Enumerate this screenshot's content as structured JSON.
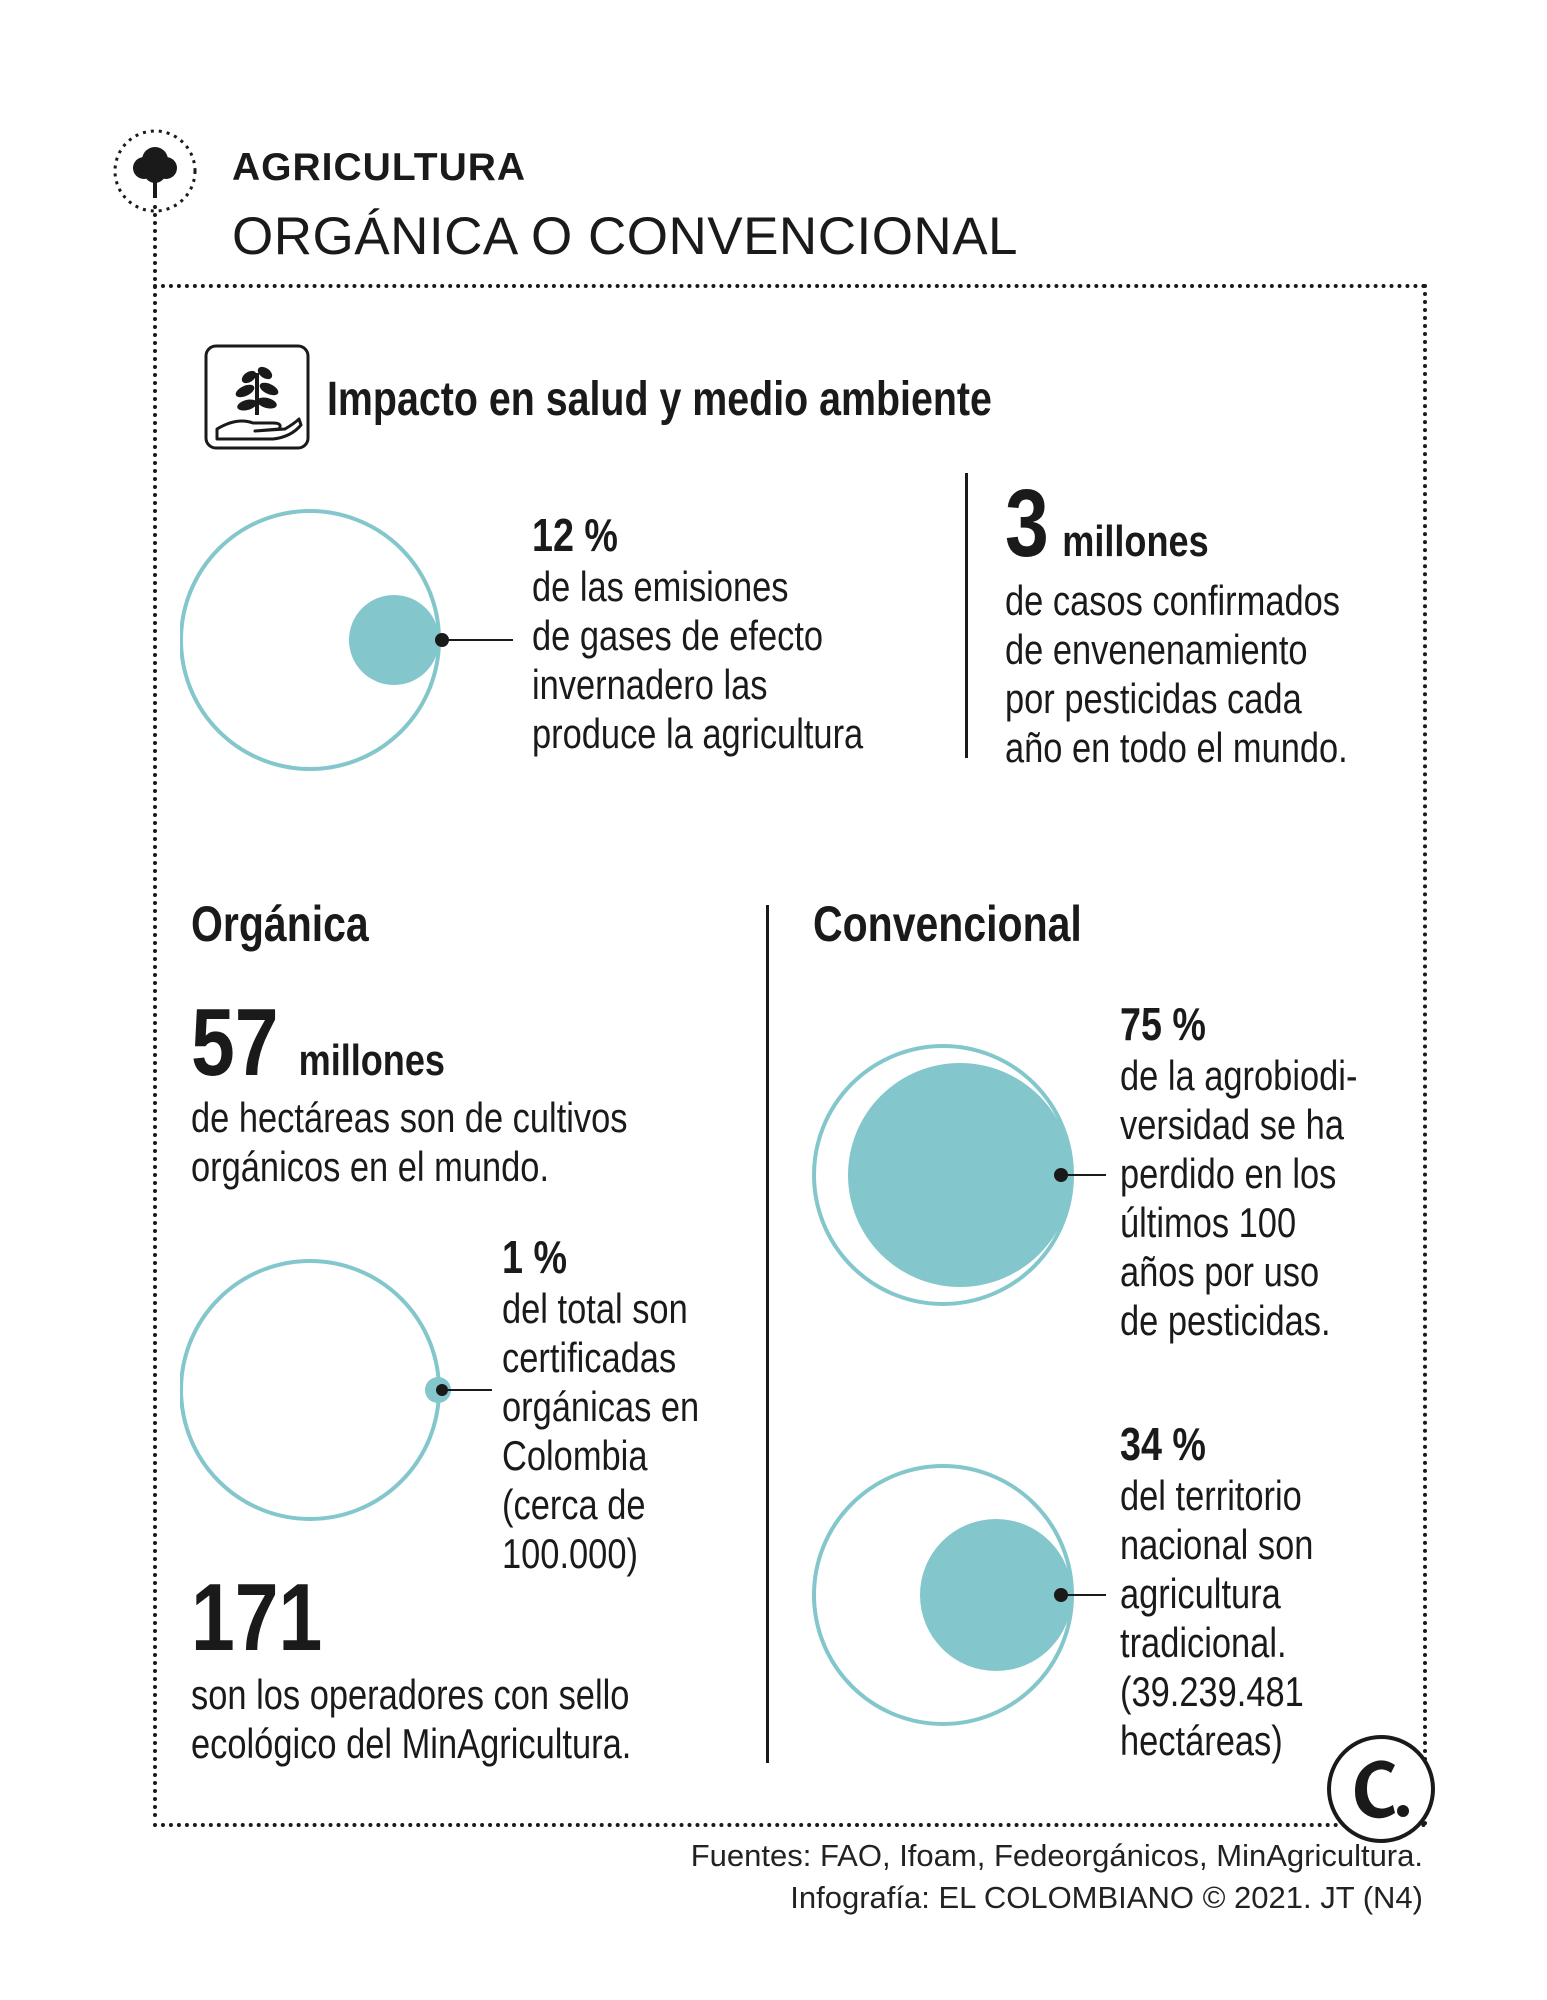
{
  "header": {
    "kicker": "AGRICULTURA",
    "headline": "ORGÁNICA O CONVENCIONAL"
  },
  "impact": {
    "title": "Impacto en salud y medio ambiente",
    "emissions": {
      "value": "12 %",
      "lines": [
        "de las emisiones",
        "de gases de efecto",
        "invernadero las",
        "produce la agricultura"
      ]
    },
    "poisoning": {
      "number": "3",
      "unit": "millones",
      "lines": [
        "de casos confirmados",
        "de envenenamiento",
        "por pesticidas cada",
        "año en todo el mundo."
      ]
    }
  },
  "organica": {
    "title": "Orgánica",
    "hectares": {
      "number": "57",
      "unit": "millones",
      "lines": [
        "de hectáreas son de cultivos",
        "orgánicos en el mundo."
      ]
    },
    "certified": {
      "value": "1 %",
      "lines": [
        "del total son",
        "certificadas",
        "orgánicas en",
        "Colombia",
        "(cerca de",
        "100.000)"
      ]
    },
    "operators": {
      "number": "171",
      "lines": [
        "son los operadores con sello",
        "ecológico del MinAgricultura."
      ]
    }
  },
  "convencional": {
    "title": "Convencional",
    "biodiversity": {
      "value": "75 %",
      "lines": [
        "de la agrobiodi-",
        "versidad se ha",
        "perdido en los",
        "últimos 100",
        "años por uso",
        "de pesticidas."
      ]
    },
    "territory": {
      "value": "34 %",
      "lines": [
        "del territorio",
        "nacional son",
        "agricultura",
        "tradicional.",
        "(39.239.481",
        "hectáreas)"
      ]
    }
  },
  "proportions": {
    "emissions": 0.12,
    "certified": 0.01,
    "biodiversity": 0.75,
    "territory": 0.34
  },
  "colors": {
    "accent": "#83c7cc",
    "ink": "#1a1a1a"
  },
  "icons": {
    "header": "tree-icon",
    "impact": "plant-in-hand-icon",
    "brand": "el-colombiano-logo"
  },
  "footer": {
    "sources": "Fuentes: FAO, Ifoam, Fedeorgánicos, MinAgricultura.",
    "credit": "Infografía: EL COLOMBIANO © 2021. JT (N4)"
  }
}
